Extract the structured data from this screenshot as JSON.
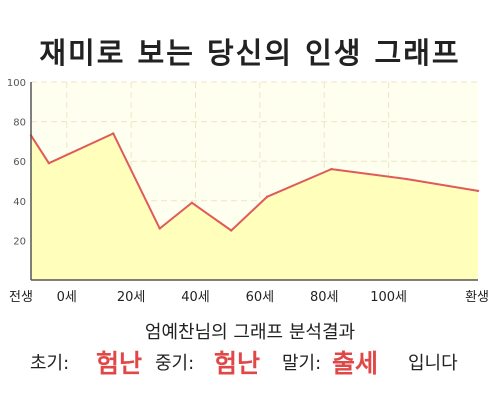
{
  "title": "재미로 보는 당신의 인생 그래프",
  "chart_data": {
    "type": "area",
    "x": [
      -5,
      0,
      18,
      31,
      40,
      51,
      61,
      79,
      100,
      120
    ],
    "y": [
      73,
      59,
      74,
      26,
      39,
      25,
      42,
      56,
      51,
      45
    ],
    "xlim": [
      -5,
      120
    ],
    "ylim": [
      0,
      100
    ],
    "y_ticks": [
      20,
      40,
      60,
      80,
      100
    ],
    "x_tick_labels": [
      {
        "x": -5,
        "label": "전생"
      },
      {
        "x": 5,
        "label": "0세"
      },
      {
        "x": 23,
        "label": "20세"
      },
      {
        "x": 41,
        "label": "40세"
      },
      {
        "x": 59,
        "label": "60세"
      },
      {
        "x": 77,
        "label": "80세"
      },
      {
        "x": 95,
        "label": "100세"
      },
      {
        "x": 120,
        "label": "환생"
      }
    ],
    "grid": true,
    "colors": {
      "fill": "#ffffbb",
      "line": "#e05a5a",
      "plot_bg": "#fffff0",
      "grid": "#ece6c8",
      "axis": "#555555"
    }
  },
  "subtitle": "엄예찬님의 그래프 분석결과",
  "result": {
    "early_label": "초기:",
    "early_value": "험난",
    "mid_label": "중기:",
    "mid_value": "험난",
    "late_label": "말기:",
    "late_value": "출세",
    "suffix": "입니다",
    "highlight_color": "#e04848"
  }
}
